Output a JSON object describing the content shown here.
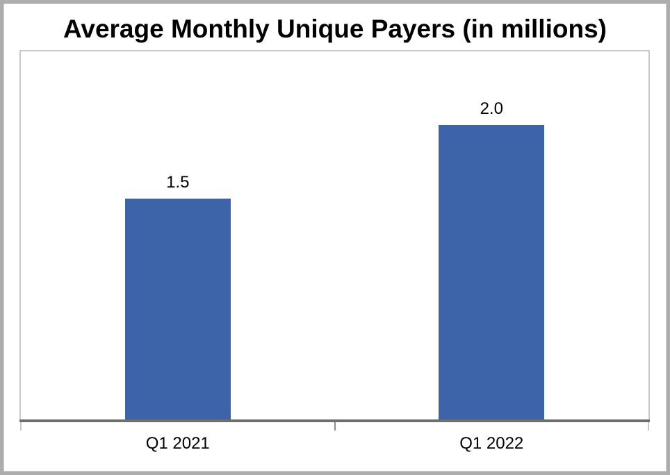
{
  "chart_data": {
    "type": "bar",
    "title": "Average Monthly Unique Payers (in millions)",
    "categories": [
      "Q1 2021",
      "Q1 2022"
    ],
    "values": [
      1.5,
      2.0
    ],
    "data_labels": [
      "1.5",
      "2.0"
    ],
    "xlabel": "",
    "ylabel": "",
    "ylim": [
      0,
      2.5
    ],
    "grid": false,
    "legend": false,
    "bar_color": "#3d64a8"
  },
  "colors": {
    "bar": "#3d64a8",
    "axis_line": "#6f6f6f",
    "plot_border": "#c9c9c9",
    "tick_outer": "#c9c9c9",
    "tick_center": "#8c8c8c",
    "frame_border": "#adadad",
    "background": "#ffffff",
    "text": "#000000"
  }
}
